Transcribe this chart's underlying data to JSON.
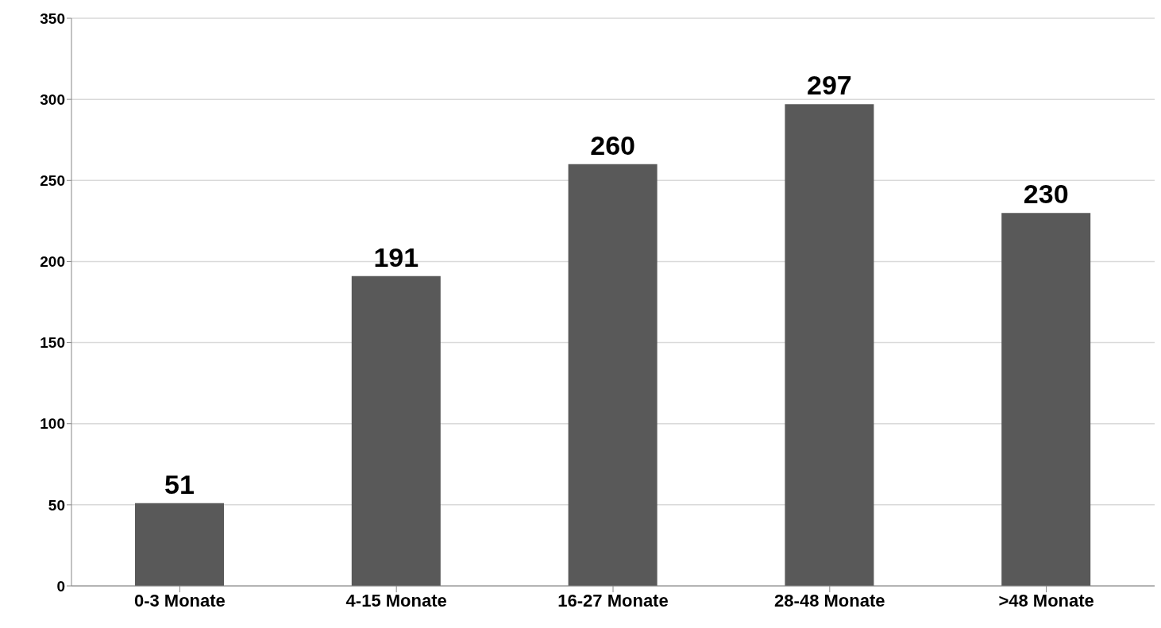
{
  "chart_data": {
    "type": "bar",
    "categories": [
      "0-3 Monate",
      "4-15 Monate",
      "16-27 Monate",
      "28-48 Monate",
      ">48 Monate"
    ],
    "values": [
      51,
      191,
      260,
      297,
      230
    ],
    "color": "#595959",
    "ylim": [
      0,
      350
    ],
    "yticks": [
      0,
      50,
      100,
      150,
      200,
      250,
      300,
      350
    ],
    "grid": "y",
    "data_labels": true
  }
}
